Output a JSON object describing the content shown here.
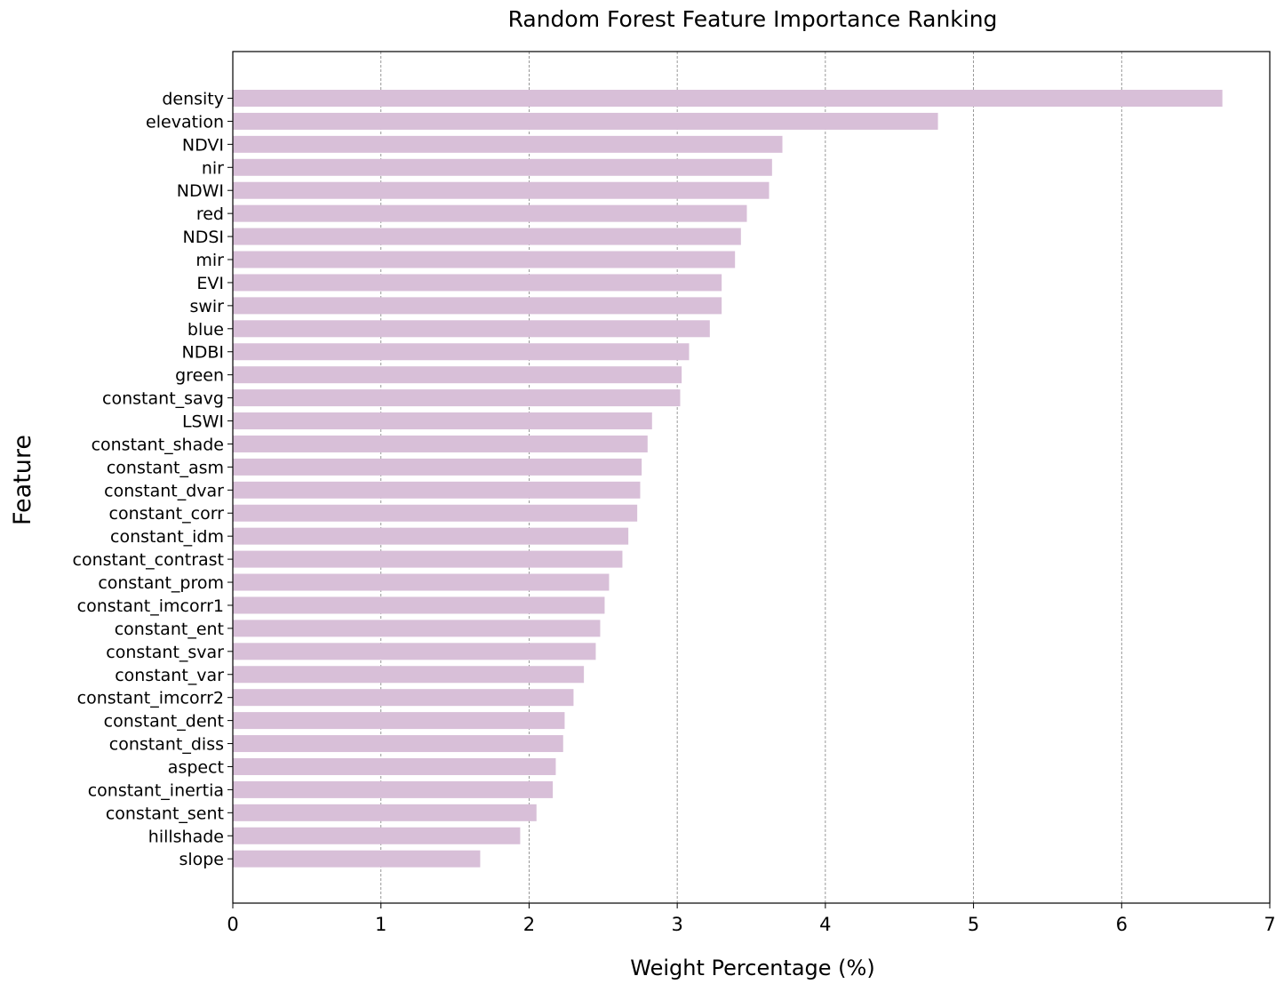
{
  "chart_data": {
    "type": "bar",
    "orientation": "horizontal",
    "title": "Random Forest Feature Importance Ranking",
    "xlabel": "Weight Percentage (%)",
    "ylabel": "Feature",
    "xlim": [
      0,
      7
    ],
    "xticks": [
      "0",
      "1",
      "2",
      "3",
      "4",
      "5",
      "6",
      "7"
    ],
    "grid": "x",
    "bar_color": "#d8bfd8",
    "categories": [
      "density",
      "elevation",
      "NDVI",
      "nir",
      "NDWI",
      "red",
      "NDSI",
      "mir",
      "EVI",
      "swir",
      "blue",
      "NDBI",
      "green",
      "constant_savg",
      "LSWI",
      "constant_shade",
      "constant_asm",
      "constant_dvar",
      "constant_corr",
      "constant_idm",
      "constant_contrast",
      "constant_prom",
      "constant_imcorr1",
      "constant_ent",
      "constant_svar",
      "constant_var",
      "constant_imcorr2",
      "constant_dent",
      "constant_diss",
      "aspect",
      "constant_inertia",
      "constant_sent",
      "hillshade",
      "slope"
    ],
    "values": [
      6.68,
      4.76,
      3.71,
      3.64,
      3.62,
      3.47,
      3.43,
      3.39,
      3.3,
      3.3,
      3.22,
      3.08,
      3.03,
      3.02,
      2.83,
      2.8,
      2.76,
      2.75,
      2.73,
      2.67,
      2.63,
      2.54,
      2.51,
      2.48,
      2.45,
      2.37,
      2.3,
      2.24,
      2.23,
      2.18,
      2.16,
      2.05,
      1.94,
      1.67
    ]
  }
}
